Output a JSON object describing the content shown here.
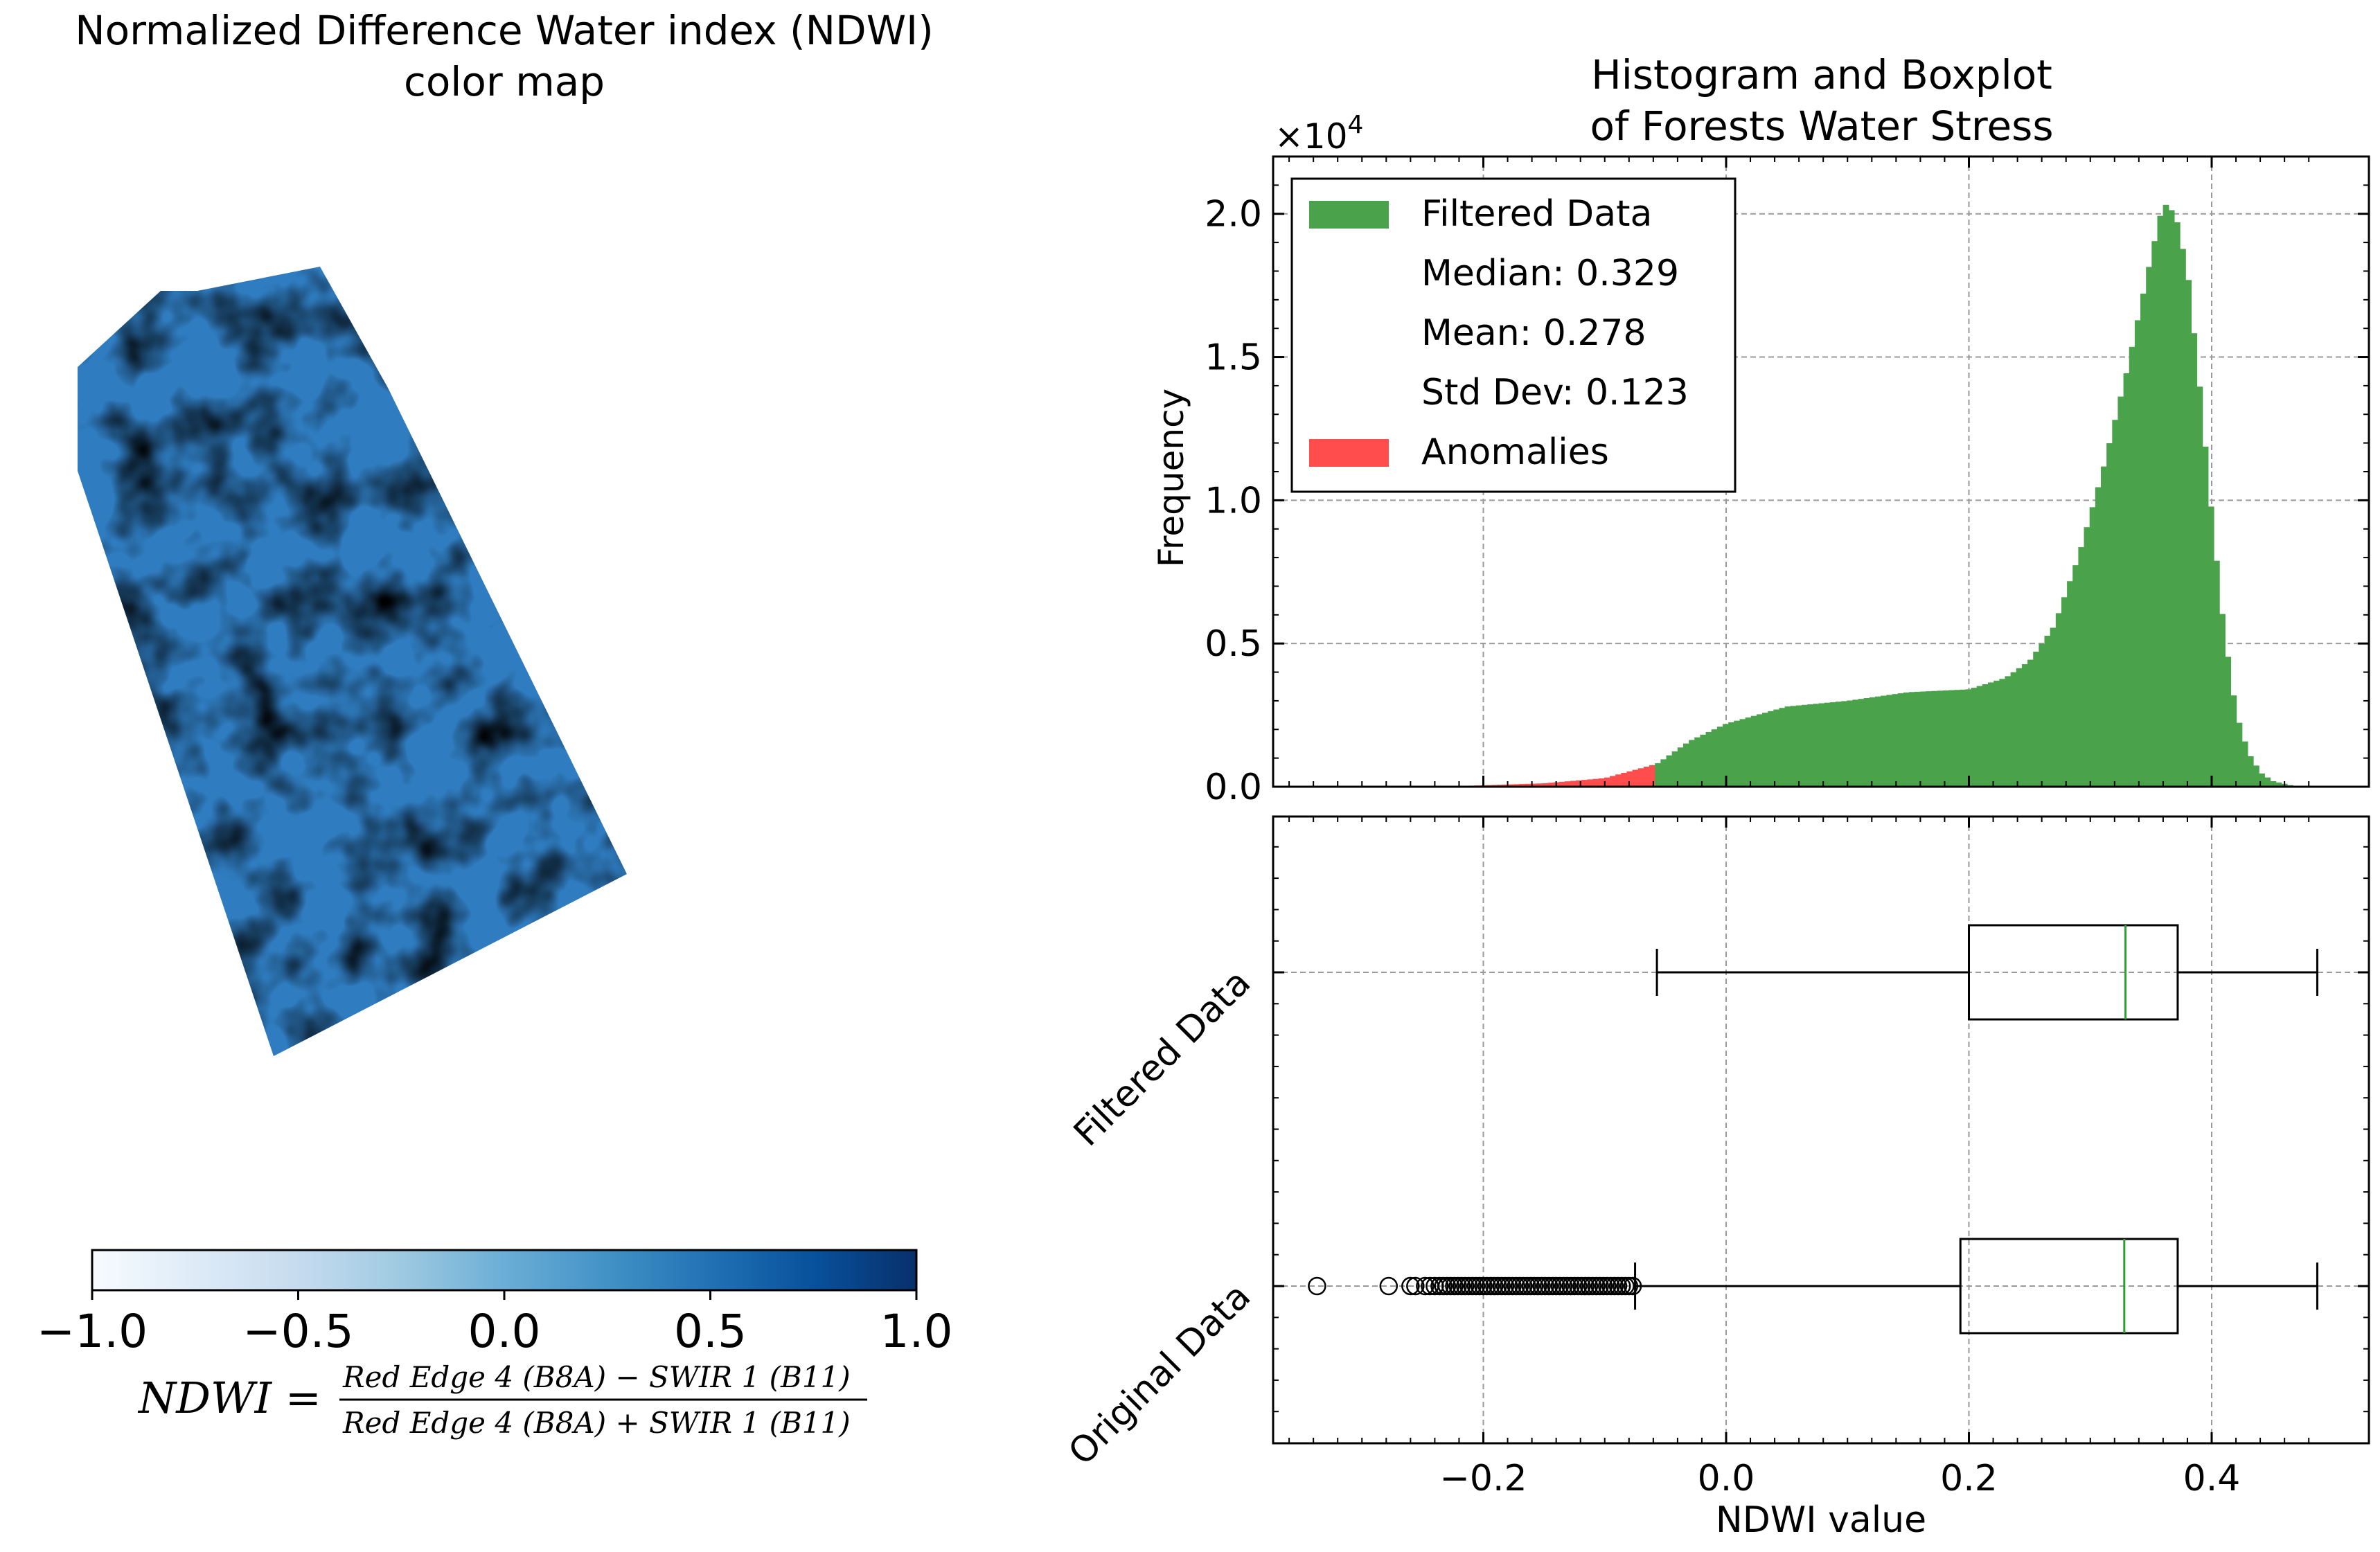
{
  "left_panel": {
    "title_line1": "Normalized Difference Water index (NDWI)",
    "title_line2": "color map",
    "colormap": [
      "#f7fbff",
      "#deebf7",
      "#c6dbef",
      "#9ecae1",
      "#6baed6",
      "#4292c6",
      "#2171b5",
      "#08519c",
      "#08306b"
    ],
    "water_stress_color": "#2f7cc0",
    "gap_color": "#eef1f4",
    "colorbar": {
      "min": -1.0,
      "max": 1.0,
      "ticks": [
        -1.0,
        -0.5,
        0.0,
        0.5,
        1.0
      ],
      "tick_labels": [
        "−1.0",
        "−0.5",
        "0.0",
        "0.5",
        "1.0"
      ]
    },
    "formula": {
      "lhs": "NDWI =",
      "numerator": "Red Edge 4 (B8A) − SWIR 1 (B11)",
      "denominator": "Red Edge 4 (B8A) + SWIR 1 (B11)"
    }
  },
  "chart_data": [
    {
      "type": "histogram",
      "title_line1": "Histogram and Boxplot",
      "title_line2": "of Forests Water Stress",
      "ylabel": "Frequency",
      "y_multiplier": "×10",
      "y_multiplier_exp": "4",
      "xlim": [
        -0.375,
        0.49
      ],
      "ylim": [
        0,
        2.2
      ],
      "y_ticks": [
        0.0,
        0.5,
        1.0,
        1.5,
        2.0
      ],
      "y_tick_labels": [
        "0.0",
        "0.5",
        "1.0",
        "1.5",
        "2.0"
      ],
      "x_ticks": [
        -0.2,
        0.0,
        0.2,
        0.4
      ],
      "grid": true,
      "legend": {
        "placement": "upper-left",
        "entries": [
          {
            "label": "Filtered Data",
            "color": "#4aa34a",
            "swatch": true
          },
          {
            "label": "Median: 0.329",
            "swatch": false
          },
          {
            "label": "Mean: 0.278",
            "swatch": false
          },
          {
            "label": "Std Dev: 0.123",
            "swatch": false
          },
          {
            "label": "Anomalies",
            "color": "#ff4d4d",
            "swatch": true
          }
        ]
      },
      "filtered_color": "#4aa34a",
      "anomaly_color": "#ff4d4d",
      "anomaly_threshold": -0.057,
      "bin_width": 0.00465,
      "profile_x": [
        -0.24,
        -0.2,
        -0.15,
        -0.1,
        -0.057,
        -0.03,
        0.0,
        0.05,
        0.1,
        0.15,
        0.2,
        0.23,
        0.25,
        0.27,
        0.29,
        0.31,
        0.33,
        0.35,
        0.36,
        0.37,
        0.38,
        0.39,
        0.4,
        0.41,
        0.42,
        0.43,
        0.44,
        0.45,
        0.46,
        0.47
      ],
      "profile_y": [
        0.0,
        0.005,
        0.012,
        0.03,
        0.08,
        0.16,
        0.22,
        0.28,
        0.3,
        0.33,
        0.34,
        0.38,
        0.44,
        0.56,
        0.8,
        1.1,
        1.45,
        1.85,
        2.04,
        2.0,
        1.8,
        1.4,
        0.95,
        0.55,
        0.26,
        0.12,
        0.05,
        0.02,
        0.01,
        0.0
      ]
    },
    {
      "type": "boxplot",
      "xlabel": "NDWI value",
      "x_ticks": [
        -0.2,
        0.0,
        0.2,
        0.4
      ],
      "x_tick_labels": [
        "−0.2",
        "0.0",
        "0.2",
        "0.4"
      ],
      "grid": true,
      "median_color": "#2ca02c",
      "boxes": [
        {
          "label": "Filtered Data",
          "whisker_low": -0.057,
          "q1": 0.2,
          "median": 0.329,
          "q3": 0.372,
          "whisker_high": 0.487,
          "fliers": []
        },
        {
          "label": "Original Data",
          "whisker_low": -0.075,
          "q1": 0.193,
          "median": 0.328,
          "q3": 0.372,
          "whisker_high": 0.487,
          "fliers": [
            -0.337,
            -0.278,
            -0.26,
            -0.256,
            -0.248,
            -0.244,
            -0.24,
            -0.236,
            -0.233,
            -0.23,
            -0.227,
            -0.224,
            -0.221,
            -0.218,
            -0.215,
            -0.212,
            -0.209,
            -0.206,
            -0.203,
            -0.2,
            -0.197,
            -0.194,
            -0.191,
            -0.188,
            -0.185,
            -0.182,
            -0.179,
            -0.176,
            -0.173,
            -0.17,
            -0.167,
            -0.164,
            -0.161,
            -0.158,
            -0.155,
            -0.152,
            -0.149,
            -0.146,
            -0.143,
            -0.14,
            -0.137,
            -0.134,
            -0.131,
            -0.128,
            -0.125,
            -0.122,
            -0.119,
            -0.116,
            -0.113,
            -0.11,
            -0.107,
            -0.104,
            -0.101,
            -0.098,
            -0.095,
            -0.092,
            -0.089,
            -0.086,
            -0.083,
            -0.08,
            -0.077
          ]
        }
      ]
    }
  ]
}
